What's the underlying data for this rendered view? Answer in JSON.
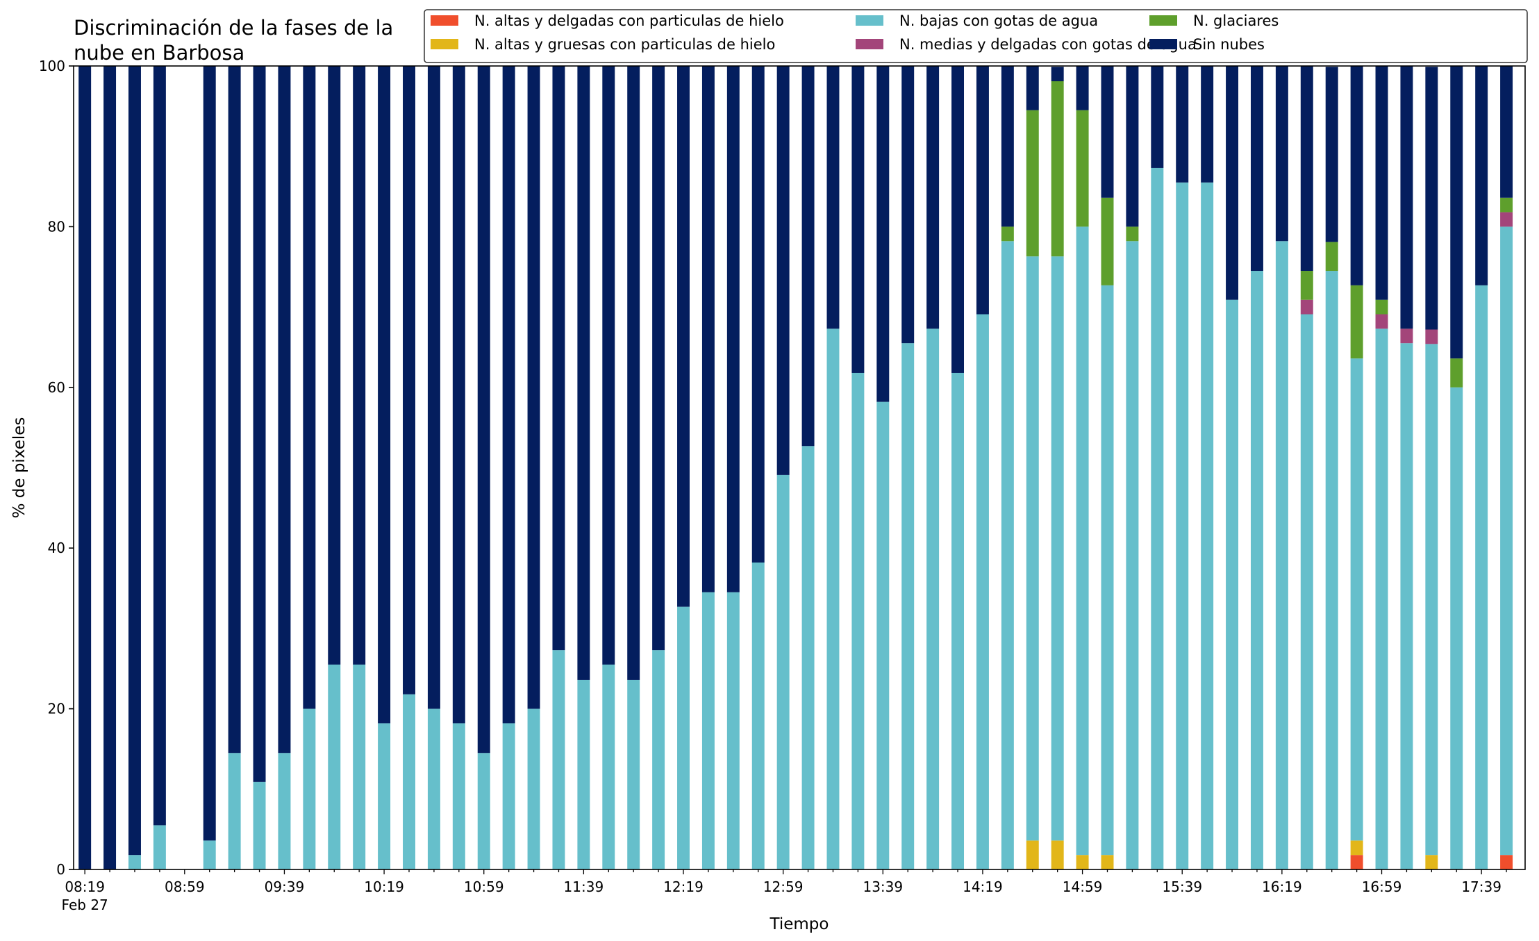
{
  "chart_data": {
    "type": "bar",
    "stacked": true,
    "title": "Discriminación de la fases de la\nnube en Barbosa",
    "xlabel": "Tiempo",
    "ylabel": "% de pixeles",
    "ylim": [
      0,
      100
    ],
    "yticks": [
      0,
      20,
      40,
      60,
      80,
      100
    ],
    "legend_position": "top-right",
    "x_start": "08:19",
    "x_step_minutes": 10,
    "x_sublabel": "Feb 27",
    "x": [
      "08:19",
      "08:29",
      "08:39",
      "08:49",
      "08:59",
      "09:09",
      "09:19",
      "09:29",
      "09:39",
      "09:49",
      "09:59",
      "10:09",
      "10:19",
      "10:29",
      "10:39",
      "10:49",
      "10:59",
      "11:09",
      "11:19",
      "11:29",
      "11:39",
      "11:49",
      "11:59",
      "12:09",
      "12:19",
      "12:29",
      "12:39",
      "12:49",
      "12:59",
      "13:09",
      "13:19",
      "13:29",
      "13:39",
      "13:49",
      "13:59",
      "14:09",
      "14:19",
      "14:29",
      "14:39",
      "14:49",
      "14:59",
      "15:09",
      "15:19",
      "15:29",
      "15:39",
      "15:49",
      "15:59",
      "16:09",
      "16:19",
      "16:29",
      "16:39",
      "16:49",
      "16:59",
      "17:09",
      "17:19",
      "17:29",
      "17:39",
      "17:49"
    ],
    "x_ticklabels": [
      "08:19",
      "08:59",
      "09:39",
      "10:19",
      "10:59",
      "11:39",
      "12:19",
      "12:59",
      "13:39",
      "14:19",
      "14:59",
      "15:39",
      "16:19",
      "16:59",
      "17:39"
    ],
    "series": [
      {
        "name": "N. altas y delgadas con particulas de hielo",
        "color": "#f04e2c",
        "values": [
          0,
          0,
          0,
          0,
          0,
          0,
          0,
          0,
          0,
          0,
          0,
          0,
          0,
          0,
          0,
          0,
          0,
          0,
          0,
          0,
          0,
          0,
          0,
          0,
          0,
          0,
          0,
          0,
          0,
          0,
          0,
          0,
          0,
          0,
          0,
          0,
          0,
          0,
          0,
          0,
          0,
          0,
          0,
          0,
          0,
          0,
          0,
          0,
          0,
          0,
          0,
          1.8,
          0,
          0,
          0,
          0,
          0,
          1.8
        ]
      },
      {
        "name": "N. altas y gruesas con particulas de hielo",
        "color": "#e2b619",
        "values": [
          0,
          0,
          0,
          0,
          0,
          0,
          0,
          0,
          0,
          0,
          0,
          0,
          0,
          0,
          0,
          0,
          0,
          0,
          0,
          0,
          0,
          0,
          0,
          0,
          0,
          0,
          0,
          0,
          0,
          0,
          0,
          0,
          0,
          0,
          0,
          0,
          0,
          0,
          3.6,
          3.6,
          1.8,
          1.8,
          0,
          0,
          0,
          0,
          0,
          0,
          0,
          0,
          0,
          1.8,
          0,
          0,
          1.8,
          0,
          0,
          0
        ]
      },
      {
        "name": "N. bajas con gotas de agua",
        "color": "#66bfcb",
        "values": [
          0,
          0,
          1.8,
          5.5,
          0,
          3.6,
          14.5,
          10.9,
          14.5,
          20,
          25.5,
          25.5,
          18.2,
          21.8,
          20,
          18.2,
          14.5,
          18.2,
          20,
          27.3,
          23.6,
          25.5,
          23.6,
          27.3,
          32.7,
          34.5,
          34.5,
          38.2,
          49.1,
          52.7,
          67.3,
          61.8,
          58.2,
          65.5,
          67.3,
          61.8,
          69.1,
          78.2,
          72.7,
          72.7,
          78.2,
          70.9,
          78.2,
          87.3,
          85.5,
          85.5,
          70.9,
          74.5,
          78.2,
          69.1,
          74.5,
          60,
          67.3,
          65.5,
          63.6,
          60,
          72.7,
          78.2
        ]
      },
      {
        "name": "N. medias y delgadas con gotas de agua",
        "color": "#a3457a",
        "values": [
          0,
          0,
          0,
          0,
          0,
          0,
          0,
          0,
          0,
          0,
          0,
          0,
          0,
          0,
          0,
          0,
          0,
          0,
          0,
          0,
          0,
          0,
          0,
          0,
          0,
          0,
          0,
          0,
          0,
          0,
          0,
          0,
          0,
          0,
          0,
          0,
          0,
          0,
          0,
          0,
          0,
          0,
          0,
          0,
          0,
          0,
          0,
          0,
          0,
          1.8,
          0,
          0,
          1.8,
          1.8,
          1.8,
          0,
          0,
          1.8
        ]
      },
      {
        "name": "N. glaciares",
        "color": "#5e9f2c",
        "values": [
          0,
          0,
          0,
          0,
          0,
          0,
          0,
          0,
          0,
          0,
          0,
          0,
          0,
          0,
          0,
          0,
          0,
          0,
          0,
          0,
          0,
          0,
          0,
          0,
          0,
          0,
          0,
          0,
          0,
          0,
          0,
          0,
          0,
          0,
          0,
          0,
          0,
          1.8,
          18.2,
          21.8,
          14.5,
          10.9,
          1.8,
          0,
          0,
          0,
          0,
          0,
          0,
          3.6,
          3.6,
          9.1,
          1.8,
          0,
          0,
          3.6,
          0,
          1.8
        ]
      },
      {
        "name": "Sin nubes",
        "color": "#041e5e",
        "values": [
          100,
          100,
          98.2,
          94.5,
          0,
          96.4,
          85.5,
          89.1,
          85.5,
          80,
          74.5,
          74.5,
          81.8,
          78.2,
          80,
          81.8,
          85.5,
          81.8,
          80,
          72.7,
          76.4,
          74.5,
          76.4,
          72.7,
          67.3,
          65.5,
          65.5,
          61.8,
          50.9,
          47.3,
          32.7,
          38.2,
          41.8,
          34.5,
          32.7,
          38.2,
          30.9,
          20,
          5.5,
          1.8,
          5.5,
          16.4,
          20,
          12.7,
          14.5,
          14.5,
          29.1,
          25.5,
          21.8,
          25.5,
          21.8,
          27.3,
          29.1,
          32.7,
          32.7,
          36.4,
          27.3,
          16.4
        ]
      }
    ]
  }
}
